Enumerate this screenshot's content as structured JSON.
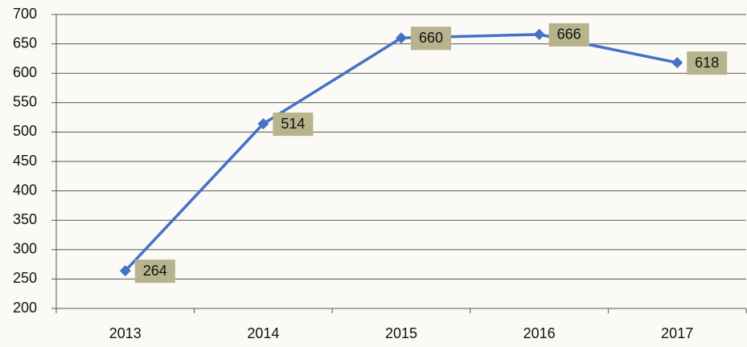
{
  "chart_data": {
    "type": "line",
    "categories": [
      "2013",
      "2014",
      "2015",
      "2016",
      "2017"
    ],
    "series": [
      {
        "name": "values",
        "color": "#4472c4",
        "values": [
          264,
          514,
          660,
          666,
          618
        ]
      }
    ],
    "ylim": [
      200,
      700
    ],
    "yticks": [
      200,
      250,
      300,
      350,
      400,
      450,
      500,
      550,
      600,
      650,
      700
    ],
    "grid": true,
    "label_box_color": "#b7b38c"
  }
}
